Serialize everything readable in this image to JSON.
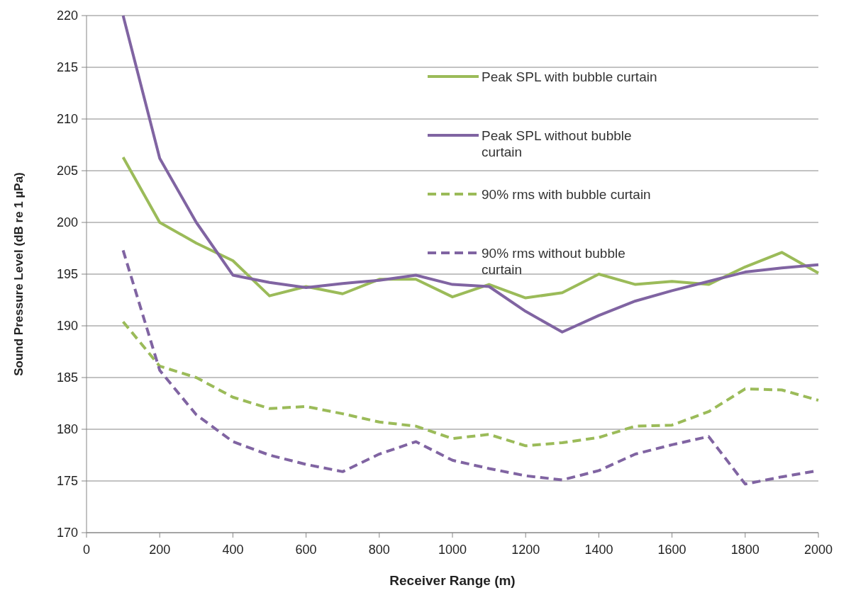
{
  "chart_data": {
    "type": "line",
    "xlabel": "Receiver Range (m)",
    "ylabel": "Sound Pressure Level (dB re 1 µPa)",
    "x": [
      100,
      200,
      300,
      400,
      500,
      600,
      700,
      800,
      900,
      1000,
      1100,
      1200,
      1300,
      1400,
      1500,
      1600,
      1700,
      1800,
      1900,
      2000
    ],
    "xlim": [
      0,
      2000
    ],
    "xticks": [
      0,
      200,
      400,
      600,
      800,
      1000,
      1200,
      1400,
      1600,
      1800,
      2000
    ],
    "ylim": [
      170,
      220
    ],
    "yticks": [
      170,
      175,
      180,
      185,
      190,
      195,
      200,
      205,
      210,
      215,
      220
    ],
    "grid": "y",
    "legend": "top right",
    "marker": "none",
    "series": [
      {
        "name": "Peak SPL with bubble curtain",
        "color": "#9bbb59",
        "line_style": "solid",
        "values": [
          206.3,
          200,
          198,
          196.3,
          192.9,
          193.8,
          193.1,
          194.5,
          194.5,
          192.8,
          194,
          192.7,
          193.2,
          195,
          194,
          194.3,
          194,
          195.7,
          197.1,
          195.1
        ]
      },
      {
        "name": "Peak SPL without bubble curtain",
        "color": "#8064a2",
        "line_style": "solid",
        "values": [
          220,
          206.2,
          200,
          194.9,
          194.2,
          193.7,
          194.1,
          194.4,
          194.9,
          194,
          193.8,
          191.4,
          189.4,
          191,
          192.4,
          193.4,
          194.3,
          195.2,
          195.6,
          195.9
        ]
      },
      {
        "name": "90% rms with bubble curtain",
        "color": "#9bbb59",
        "line_style": "dashed",
        "values": [
          190.4,
          186.1,
          185,
          183.1,
          182,
          182.2,
          181.5,
          180.7,
          180.3,
          179.1,
          179.5,
          178.4,
          178.7,
          179.2,
          180.3,
          180.4,
          181.7,
          183.9,
          183.8,
          182.8
        ]
      },
      {
        "name": "90% rms without bubble curtain",
        "color": "#8064a2",
        "line_style": "dashed",
        "values": [
          197.3,
          185.7,
          181.4,
          178.8,
          177.5,
          176.6,
          175.9,
          177.6,
          178.8,
          177,
          176.2,
          175.5,
          175.1,
          176,
          177.6,
          178.5,
          179.3,
          174.7,
          175.4,
          176
        ]
      }
    ]
  }
}
